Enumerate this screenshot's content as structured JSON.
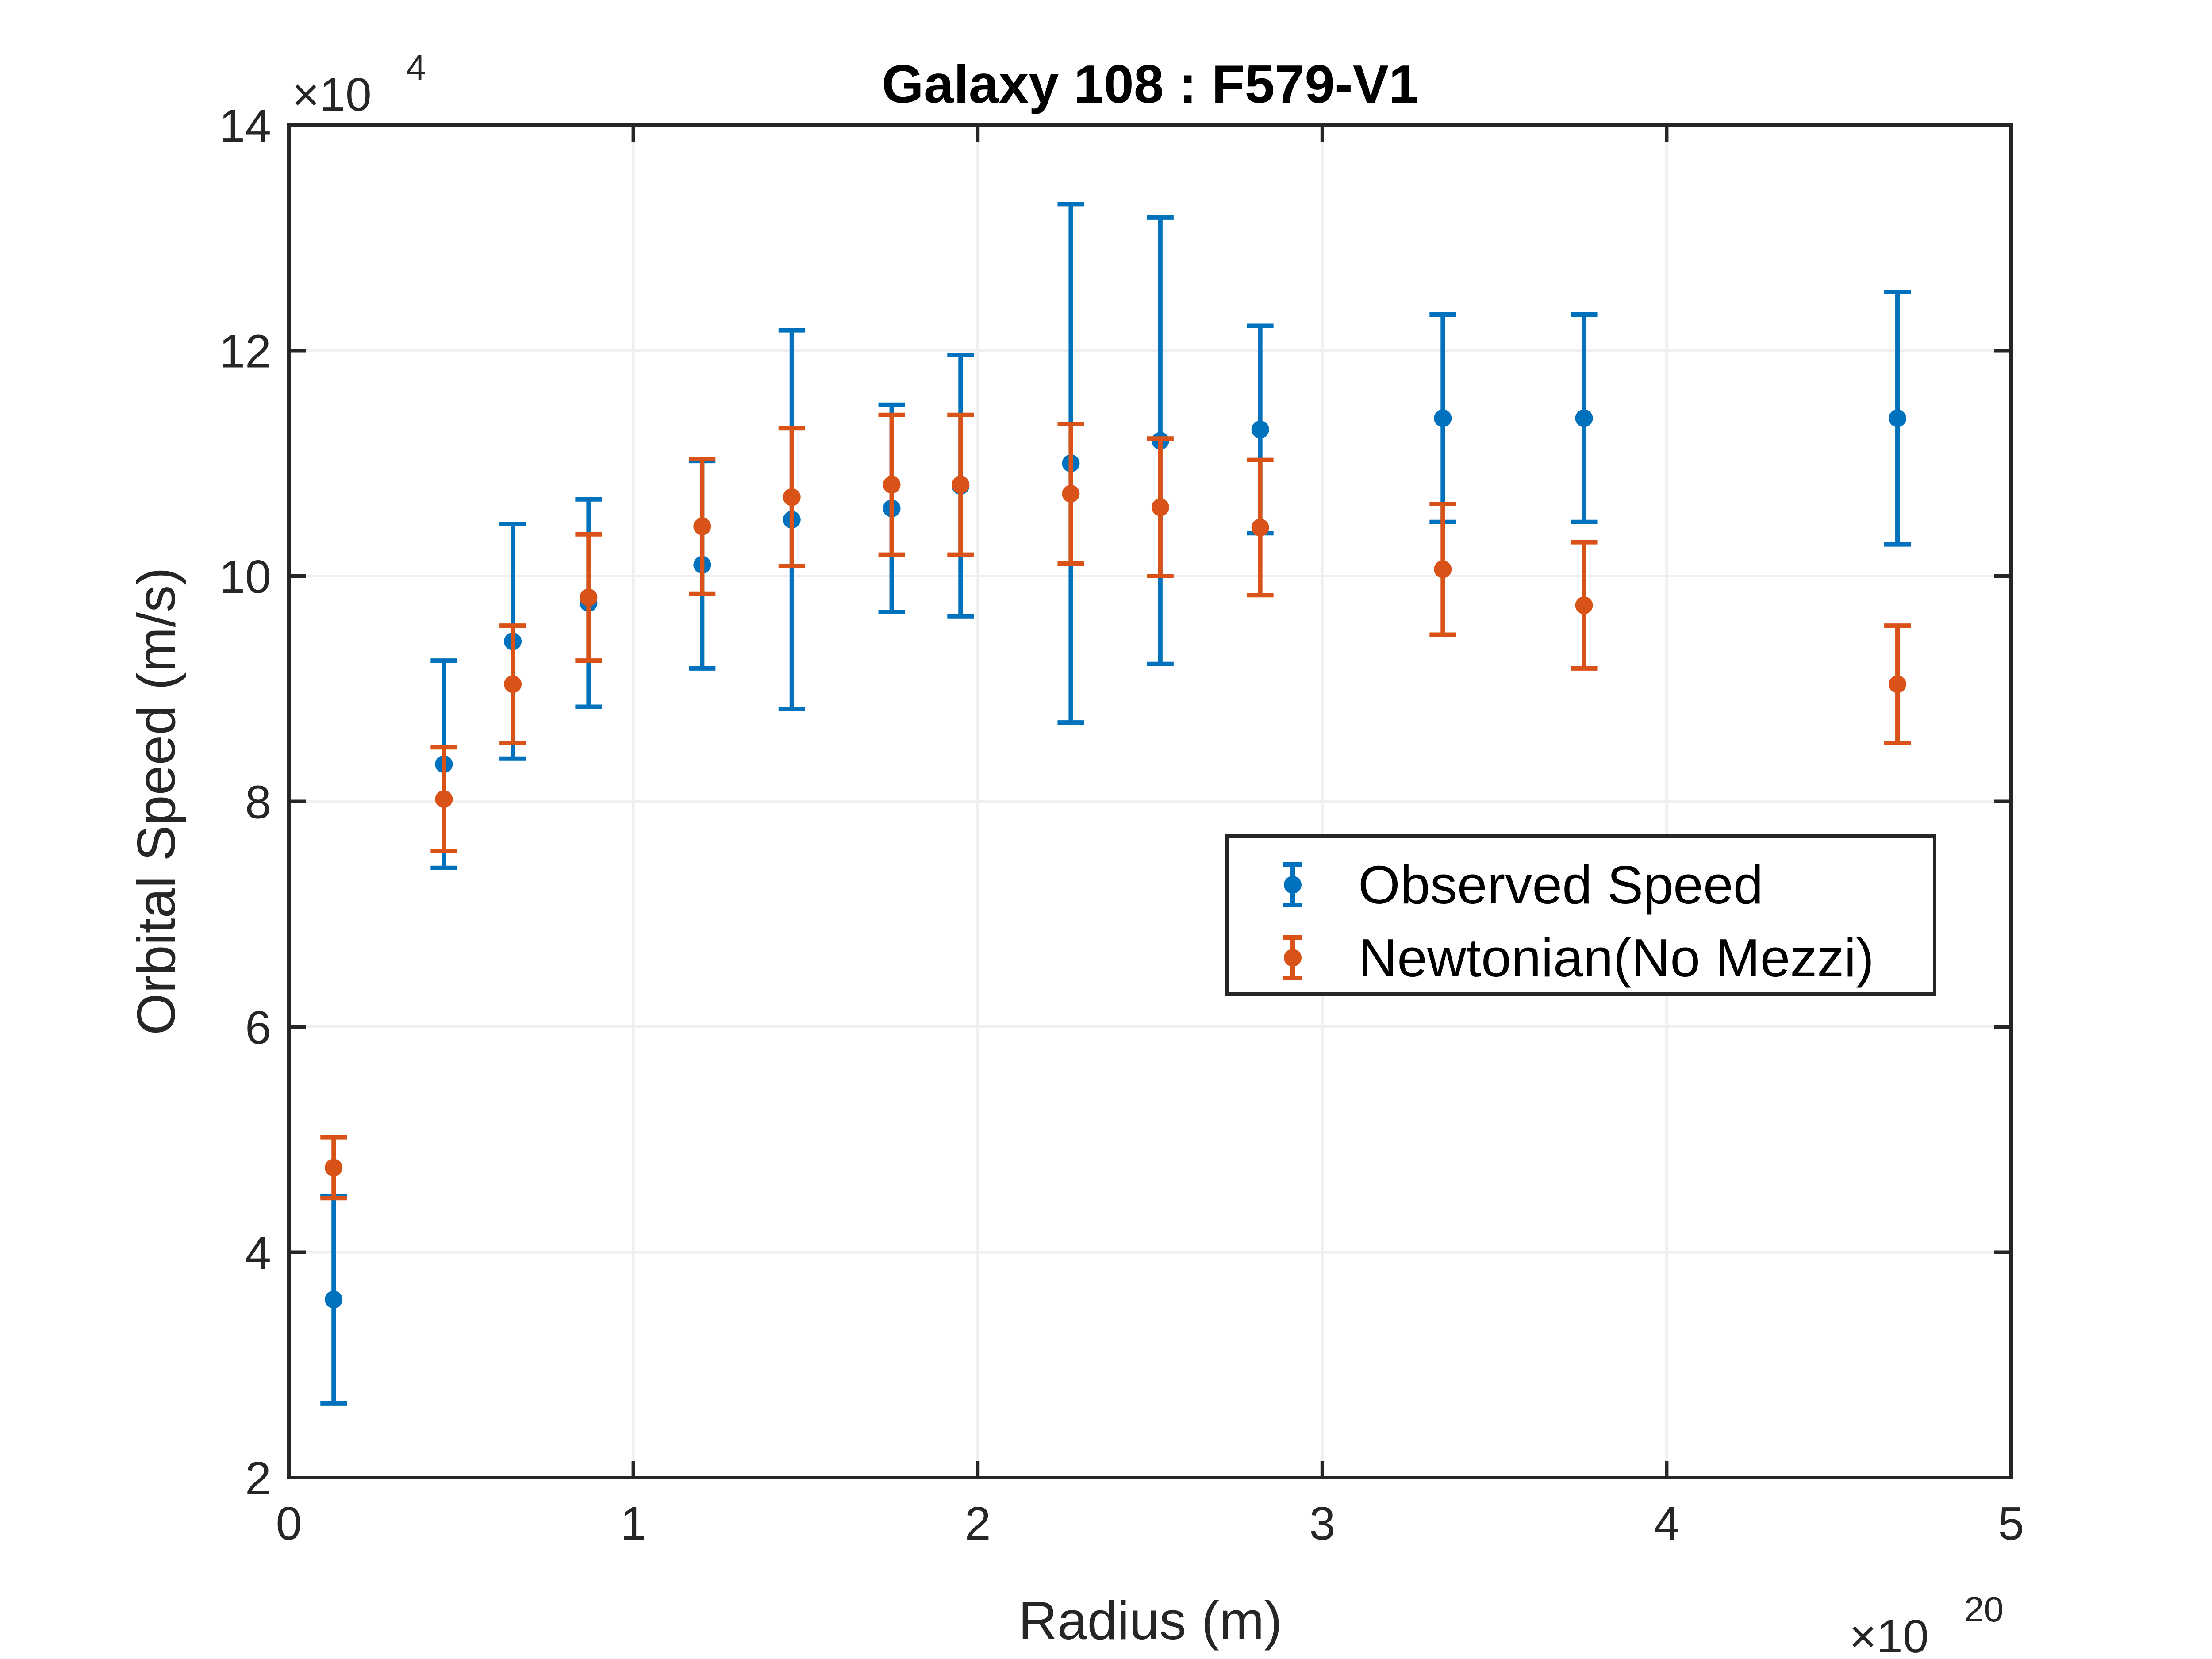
{
  "chart_data": {
    "type": "scatter",
    "title": "Galaxy 108 : F579-V1",
    "xlabel": "Radius (m)",
    "ylabel": "Orbital Speed (m/s)",
    "xlim": [
      0,
      5
    ],
    "ylim": [
      2,
      14
    ],
    "x_exponent": {
      "base": "×10",
      "power": "20"
    },
    "y_exponent": {
      "base": "×10",
      "power": "4"
    },
    "xticks": [
      "0",
      "1",
      "2",
      "3",
      "4",
      "5"
    ],
    "yticks": [
      "2",
      "4",
      "6",
      "8",
      "10",
      "12",
      "14"
    ],
    "grid": true,
    "legend_position": "right-middle",
    "series": [
      {
        "name": "Observed Speed",
        "color": "#0072BD",
        "points": [
          {
            "x": 0.13,
            "y": 3.58,
            "err": 0.92
          },
          {
            "x": 0.45,
            "y": 8.33,
            "err": 0.92
          },
          {
            "x": 0.65,
            "y": 9.42,
            "err": 1.04
          },
          {
            "x": 0.87,
            "y": 9.76,
            "err": 0.92
          },
          {
            "x": 1.2,
            "y": 10.1,
            "err": 0.92
          },
          {
            "x": 1.46,
            "y": 10.5,
            "err": 1.68
          },
          {
            "x": 1.75,
            "y": 10.6,
            "err": 0.92
          },
          {
            "x": 1.95,
            "y": 10.8,
            "err": 1.16
          },
          {
            "x": 2.27,
            "y": 11.0,
            "err": 2.3
          },
          {
            "x": 2.53,
            "y": 11.2,
            "err": 1.98
          },
          {
            "x": 2.82,
            "y": 11.3,
            "err": 0.92
          },
          {
            "x": 3.35,
            "y": 11.4,
            "err": 0.92
          },
          {
            "x": 3.76,
            "y": 11.4,
            "err": 0.92
          },
          {
            "x": 4.67,
            "y": 11.4,
            "err": 1.12
          }
        ]
      },
      {
        "name": "Newtonian(No Mezzi)",
        "color": "#D95319",
        "points": [
          {
            "x": 0.13,
            "y": 4.75,
            "err": 0.27
          },
          {
            "x": 0.45,
            "y": 8.02,
            "err": 0.46
          },
          {
            "x": 0.65,
            "y": 9.04,
            "err": 0.52
          },
          {
            "x": 0.87,
            "y": 9.81,
            "err": 0.56
          },
          {
            "x": 1.2,
            "y": 10.44,
            "err": 0.6
          },
          {
            "x": 1.46,
            "y": 10.7,
            "err": 0.61
          },
          {
            "x": 1.75,
            "y": 10.81,
            "err": 0.62
          },
          {
            "x": 1.95,
            "y": 10.81,
            "err": 0.62
          },
          {
            "x": 2.27,
            "y": 10.73,
            "err": 0.62
          },
          {
            "x": 2.53,
            "y": 10.61,
            "err": 0.61
          },
          {
            "x": 2.82,
            "y": 10.43,
            "err": 0.6
          },
          {
            "x": 3.35,
            "y": 10.06,
            "err": 0.58
          },
          {
            "x": 3.76,
            "y": 9.74,
            "err": 0.56
          },
          {
            "x": 4.67,
            "y": 9.04,
            "err": 0.52
          }
        ]
      }
    ]
  }
}
